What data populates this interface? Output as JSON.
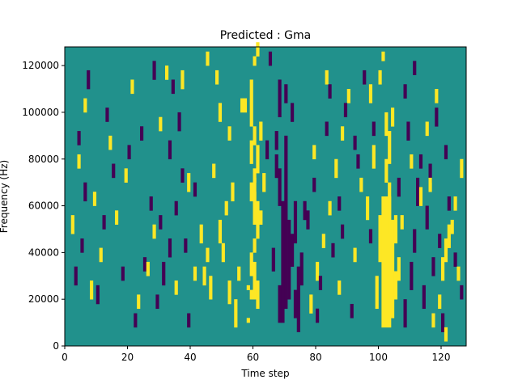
{
  "chart_data": {
    "type": "heatmap",
    "title": "Predicted : Gma",
    "xlabel": "Time step",
    "ylabel": "Frequency (Hz)",
    "xlim": [
      0,
      128
    ],
    "ylim": [
      0,
      128000
    ],
    "x_ticks": [
      0,
      20,
      40,
      60,
      80,
      100,
      120
    ],
    "y_ticks": [
      0,
      20000,
      40000,
      60000,
      80000,
      100000,
      120000
    ],
    "grid": false,
    "n_time_steps": 128,
    "n_freq_bins": 64,
    "colors": {
      "background": "#21918c",
      "positive": "#fde725",
      "negative": "#440154"
    },
    "cell_values": {
      "background": 0,
      "positive": 1,
      "negative": -1
    },
    "cells": [
      [
        58,
        5,
        5,
        1,
        1
      ],
      [
        58,
        12,
        12,
        1,
        1
      ],
      [
        59,
        10,
        11,
        1,
        1
      ],
      [
        60,
        10,
        17,
        1,
        1
      ],
      [
        61,
        8,
        13,
        1,
        1
      ],
      [
        59,
        15,
        19,
        1,
        1
      ],
      [
        60,
        20,
        22,
        1,
        1
      ],
      [
        61,
        23,
        30,
        1,
        1
      ],
      [
        60,
        26,
        32,
        1,
        1
      ],
      [
        59,
        31,
        34,
        1,
        1
      ],
      [
        60,
        30,
        35,
        1,
        1
      ],
      [
        62,
        26,
        28,
        1,
        1
      ],
      [
        63,
        33,
        36,
        1,
        1
      ],
      [
        60,
        35,
        37,
        1,
        1
      ],
      [
        61,
        37,
        42,
        1,
        1
      ],
      [
        59,
        39,
        43,
        1,
        1
      ],
      [
        60,
        43,
        46,
        1,
        1
      ],
      [
        62,
        44,
        47,
        1,
        1
      ],
      [
        59,
        47,
        56,
        1,
        1
      ],
      [
        57,
        50,
        52,
        1,
        1
      ],
      [
        60,
        60,
        61,
        1,
        1
      ],
      [
        61,
        62,
        64,
        1,
        1
      ],
      [
        68,
        5,
        12,
        1,
        -1
      ],
      [
        69,
        5,
        30,
        1,
        -1
      ],
      [
        70,
        8,
        44,
        1,
        -1
      ],
      [
        71,
        10,
        22,
        1,
        -1
      ],
      [
        72,
        17,
        23,
        1,
        -1
      ],
      [
        71,
        23,
        26,
        1,
        -1
      ],
      [
        70,
        52,
        55,
        1,
        -1
      ],
      [
        67,
        42,
        45,
        1,
        -1
      ],
      [
        68,
        30,
        37,
        1,
        -1
      ],
      [
        67,
        36,
        40,
        1,
        -1
      ],
      [
        73,
        22,
        30,
        1,
        -1
      ],
      [
        74,
        3,
        16,
        1,
        -1
      ],
      [
        73,
        6,
        11,
        1,
        -1
      ],
      [
        72,
        48,
        51,
        1,
        -1
      ],
      [
        75,
        13,
        19,
        1,
        -1
      ],
      [
        76,
        27,
        30,
        1,
        -1
      ],
      [
        66,
        16,
        20,
        1,
        -1
      ],
      [
        68,
        49,
        56,
        1,
        -1
      ],
      [
        65,
        60,
        62,
        1,
        -1
      ],
      [
        64,
        40,
        43,
        1,
        -1
      ],
      [
        101,
        4,
        31,
        3,
        1
      ],
      [
        104,
        6,
        26,
        1,
        1
      ],
      [
        100,
        18,
        27,
        1,
        1
      ],
      [
        103,
        24,
        34,
        1,
        1
      ],
      [
        102,
        35,
        39,
        1,
        1
      ],
      [
        103,
        39,
        45,
        1,
        1
      ],
      [
        105,
        10,
        15,
        1,
        1
      ],
      [
        105,
        22,
        27,
        1,
        1
      ],
      [
        99,
        8,
        14,
        1,
        1
      ],
      [
        106,
        14,
        18,
        1,
        1
      ],
      [
        102,
        45,
        49,
        1,
        1
      ],
      [
        104,
        47,
        50,
        1,
        1
      ],
      [
        98,
        38,
        42,
        1,
        1
      ],
      [
        97,
        52,
        55,
        1,
        1
      ],
      [
        100,
        56,
        58,
        1,
        1
      ],
      [
        101,
        61,
        62,
        1,
        1
      ],
      [
        96,
        27,
        31,
        1,
        1
      ],
      [
        108,
        4,
        9,
        1,
        -1
      ],
      [
        110,
        12,
        17,
        1,
        -1
      ],
      [
        111,
        20,
        24,
        1,
        -1
      ],
      [
        112,
        30,
        35,
        1,
        -1
      ],
      [
        113,
        38,
        40,
        1,
        -1
      ],
      [
        109,
        44,
        47,
        1,
        -1
      ],
      [
        106,
        32,
        35,
        1,
        -1
      ],
      [
        114,
        8,
        12,
        1,
        -1
      ],
      [
        115,
        25,
        29,
        1,
        -1
      ],
      [
        116,
        35,
        38,
        1,
        -1
      ],
      [
        117,
        15,
        18,
        1,
        -1
      ],
      [
        118,
        47,
        50,
        1,
        -1
      ],
      [
        108,
        53,
        55,
        1,
        -1
      ],
      [
        111,
        58,
        60,
        1,
        -1
      ],
      [
        119,
        21,
        23,
        1,
        -1
      ],
      [
        122,
        29,
        31,
        1,
        -1
      ],
      [
        120,
        3,
        6,
        1,
        -1
      ],
      [
        124,
        17,
        19,
        1,
        -1
      ],
      [
        126,
        10,
        12,
        1,
        -1
      ],
      [
        121,
        40,
        42,
        1,
        -1
      ],
      [
        117,
        4,
        6,
        1,
        1
      ],
      [
        119,
        8,
        10,
        1,
        1
      ],
      [
        120,
        14,
        18,
        1,
        1
      ],
      [
        121,
        18,
        22,
        1,
        1
      ],
      [
        122,
        21,
        25,
        1,
        1
      ],
      [
        123,
        24,
        26,
        1,
        1
      ],
      [
        124,
        29,
        31,
        1,
        1
      ],
      [
        126,
        36,
        39,
        1,
        1
      ],
      [
        125,
        14,
        16,
        1,
        1
      ],
      [
        113,
        30,
        33,
        1,
        1
      ],
      [
        115,
        45,
        47,
        1,
        1
      ],
      [
        118,
        52,
        54,
        1,
        1
      ],
      [
        121,
        1,
        3,
        1,
        1
      ],
      [
        110,
        38,
        40,
        1,
        1
      ],
      [
        107,
        25,
        27,
        1,
        1
      ],
      [
        116,
        33,
        35,
        1,
        1
      ],
      [
        54,
        4,
        9,
        1,
        1
      ],
      [
        52,
        9,
        13,
        1,
        1
      ],
      [
        55,
        14,
        16,
        1,
        1
      ],
      [
        50,
        18,
        21,
        1,
        1
      ],
      [
        49,
        22,
        26,
        1,
        1
      ],
      [
        51,
        28,
        30,
        1,
        1
      ],
      [
        53,
        31,
        34,
        1,
        1
      ],
      [
        47,
        36,
        38,
        1,
        1
      ],
      [
        52,
        44,
        46,
        1,
        1
      ],
      [
        49,
        48,
        51,
        1,
        1
      ],
      [
        56,
        50,
        52,
        1,
        1
      ],
      [
        46,
        10,
        14,
        1,
        1
      ],
      [
        44,
        13,
        16,
        1,
        1
      ],
      [
        45,
        18,
        20,
        1,
        1
      ],
      [
        41,
        14,
        16,
        1,
        1
      ],
      [
        43,
        22,
        25,
        1,
        1
      ],
      [
        39,
        33,
        36,
        1,
        1
      ],
      [
        37,
        55,
        58,
        1,
        1
      ],
      [
        48,
        56,
        58,
        1,
        1
      ],
      [
        45,
        60,
        62,
        1,
        1
      ],
      [
        29,
        8,
        10,
        1,
        -1
      ],
      [
        31,
        13,
        17,
        1,
        -1
      ],
      [
        33,
        19,
        22,
        1,
        -1
      ],
      [
        30,
        25,
        27,
        1,
        -1
      ],
      [
        35,
        28,
        30,
        1,
        -1
      ],
      [
        37,
        35,
        37,
        1,
        -1
      ],
      [
        33,
        40,
        43,
        1,
        -1
      ],
      [
        36,
        46,
        49,
        1,
        -1
      ],
      [
        34,
        54,
        56,
        1,
        -1
      ],
      [
        39,
        4,
        6,
        1,
        -1
      ],
      [
        41,
        32,
        34,
        1,
        -1
      ],
      [
        38,
        20,
        22,
        1,
        -1
      ],
      [
        25,
        16,
        18,
        1,
        -1
      ],
      [
        27,
        29,
        31,
        1,
        -1
      ],
      [
        24,
        44,
        46,
        1,
        -1
      ],
      [
        28,
        57,
        60,
        1,
        -1
      ],
      [
        3,
        13,
        16,
        1,
        -1
      ],
      [
        5,
        20,
        22,
        1,
        -1
      ],
      [
        6,
        31,
        34,
        1,
        -1
      ],
      [
        4,
        43,
        45,
        1,
        -1
      ],
      [
        7,
        55,
        58,
        1,
        -1
      ],
      [
        10,
        9,
        12,
        1,
        -1
      ],
      [
        12,
        25,
        27,
        1,
        -1
      ],
      [
        15,
        36,
        38,
        1,
        -1
      ],
      [
        13,
        48,
        50,
        1,
        -1
      ],
      [
        18,
        14,
        16,
        1,
        -1
      ],
      [
        20,
        40,
        42,
        1,
        -1
      ],
      [
        22,
        4,
        6,
        1,
        -1
      ],
      [
        2,
        24,
        27,
        1,
        1
      ],
      [
        4,
        38,
        40,
        1,
        1
      ],
      [
        6,
        50,
        52,
        1,
        1
      ],
      [
        8,
        10,
        13,
        1,
        1
      ],
      [
        9,
        30,
        32,
        1,
        1
      ],
      [
        11,
        18,
        20,
        1,
        1
      ],
      [
        14,
        42,
        44,
        1,
        1
      ],
      [
        16,
        26,
        28,
        1,
        1
      ],
      [
        19,
        35,
        37,
        1,
        1
      ],
      [
        21,
        54,
        56,
        1,
        1
      ],
      [
        23,
        8,
        10,
        1,
        1
      ],
      [
        26,
        15,
        17,
        1,
        1
      ],
      [
        28,
        23,
        25,
        1,
        1
      ],
      [
        30,
        46,
        48,
        1,
        1
      ],
      [
        32,
        57,
        59,
        1,
        1
      ],
      [
        35,
        11,
        13,
        1,
        1
      ],
      [
        78,
        7,
        10,
        1,
        1
      ],
      [
        80,
        14,
        17,
        1,
        1
      ],
      [
        82,
        21,
        23,
        1,
        1
      ],
      [
        84,
        28,
        30,
        1,
        1
      ],
      [
        86,
        36,
        39,
        1,
        1
      ],
      [
        88,
        44,
        46,
        1,
        1
      ],
      [
        90,
        52,
        54,
        1,
        1
      ],
      [
        92,
        18,
        20,
        1,
        1
      ],
      [
        94,
        33,
        35,
        1,
        1
      ],
      [
        79,
        40,
        42,
        1,
        1
      ],
      [
        83,
        56,
        58,
        1,
        1
      ],
      [
        87,
        11,
        13,
        1,
        1
      ],
      [
        77,
        25,
        28,
        1,
        -1
      ],
      [
        79,
        33,
        35,
        1,
        -1
      ],
      [
        81,
        12,
        14,
        1,
        -1
      ],
      [
        83,
        45,
        47,
        1,
        -1
      ],
      [
        85,
        19,
        21,
        1,
        -1
      ],
      [
        87,
        29,
        31,
        1,
        -1
      ],
      [
        89,
        49,
        51,
        1,
        -1
      ],
      [
        91,
        6,
        8,
        1,
        -1
      ],
      [
        93,
        38,
        40,
        1,
        -1
      ],
      [
        95,
        56,
        58,
        1,
        -1
      ],
      [
        97,
        22,
        24,
        1,
        -1
      ],
      [
        98,
        45,
        47,
        1,
        -1
      ],
      [
        80,
        5,
        7,
        1,
        -1
      ],
      [
        84,
        53,
        55,
        1,
        -1
      ],
      [
        88,
        23,
        25,
        1,
        -1
      ],
      [
        92,
        42,
        44,
        1,
        -1
      ]
    ]
  }
}
